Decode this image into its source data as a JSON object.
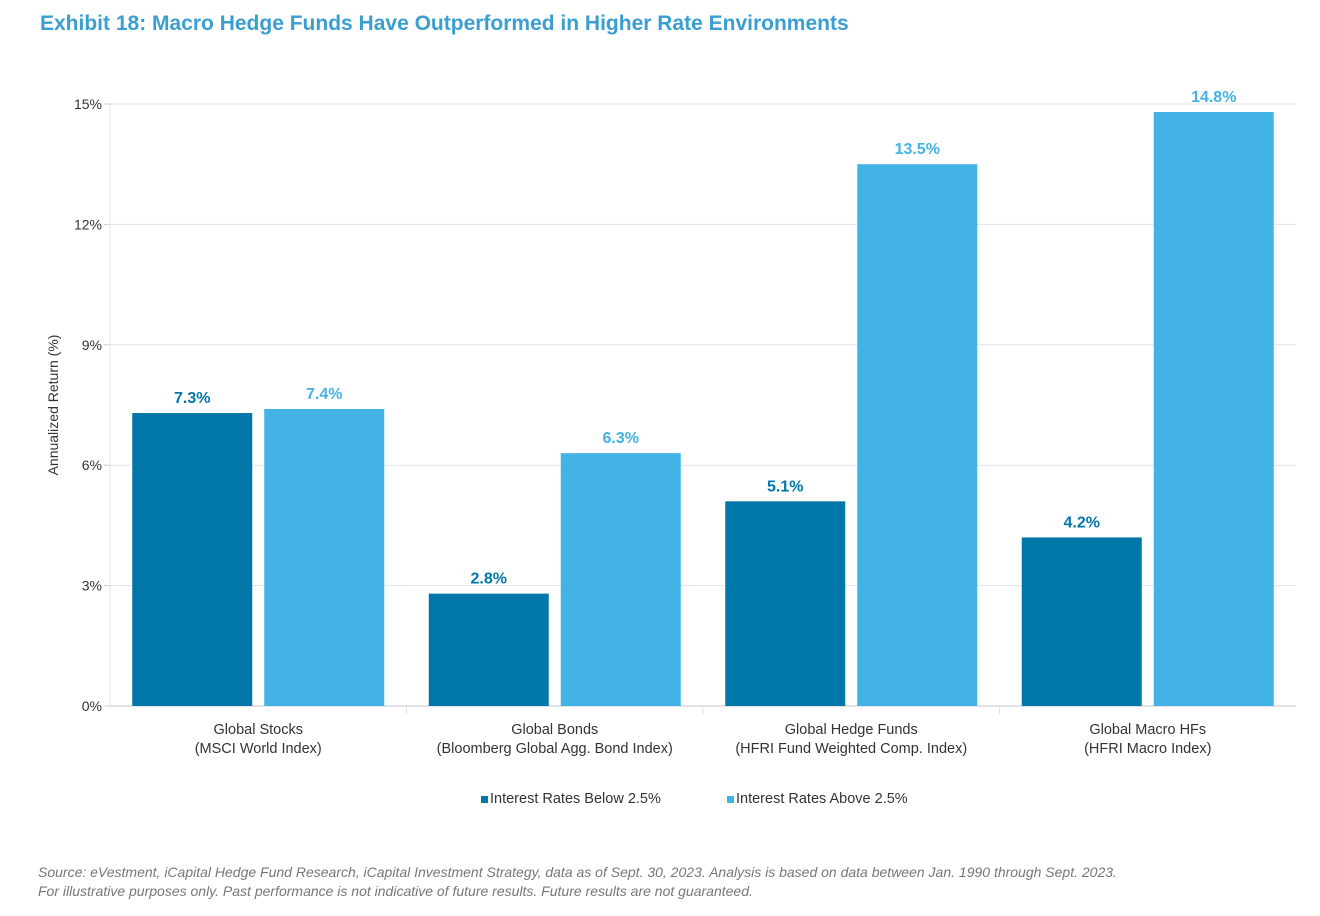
{
  "title": "Exhibit 18: Macro Hedge Funds Have Outperformed in Higher Rate Environments",
  "chart_data": {
    "type": "bar",
    "title": "Exhibit 18: Macro Hedge Funds Have Outperformed in Higher Rate Environments",
    "ylabel": "Annualized Return (%)",
    "xlabel": "",
    "ylim": [
      0,
      15
    ],
    "yticks": [
      "0%",
      "3%",
      "6%",
      "9%",
      "12%",
      "15%"
    ],
    "grid": true,
    "legend_position": "bottom",
    "categories": [
      [
        "Global Stocks",
        "(MSCI World Index)"
      ],
      [
        "Global Bonds",
        "(Bloomberg Global Agg. Bond Index)"
      ],
      [
        "Global Hedge Funds",
        "(HFRI Fund Weighted Comp. Index)"
      ],
      [
        "Global Macro HFs",
        "(HFRI Macro Index)"
      ]
    ],
    "series": [
      {
        "name": "Interest Rates Below 2.5%",
        "color": "#0077a8",
        "values": [
          7.3,
          2.8,
          5.1,
          4.2
        ],
        "labels": [
          "7.3%",
          "2.8%",
          "5.1%",
          "4.2%"
        ]
      },
      {
        "name": "Interest Rates Above 2.5%",
        "color": "#42b3e4",
        "values": [
          7.4,
          6.3,
          13.5,
          14.8
        ],
        "labels": [
          "7.4%",
          "6.3%",
          "13.5%",
          "14.8%"
        ]
      }
    ]
  },
  "source": [
    "Source: eVestment, iCapital Hedge Fund Research, iCapital Investment Strategy, data as of Sept. 30, 2023. Analysis is based on data between Jan. 1990 through Sept. 2023.",
    "For illustrative purposes only. Past performance is not indicative of future results. Future results are not guaranteed."
  ]
}
